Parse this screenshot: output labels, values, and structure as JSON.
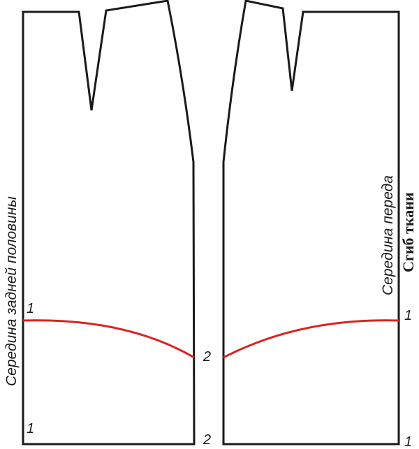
{
  "back_panel": {
    "center_label": "Середина задней половины",
    "point_top_left": "1",
    "point_bottom_left": "1",
    "point_line_end": "2",
    "point_bottom_right": "2"
  },
  "front_panel": {
    "center_label": "Середина переда",
    "fold_label": "Сгиб ткани",
    "point_top_right": "1",
    "point_bottom_right": "1"
  },
  "colors": {
    "outline": "#1a1a1a",
    "cut_line": "#d9231f"
  }
}
